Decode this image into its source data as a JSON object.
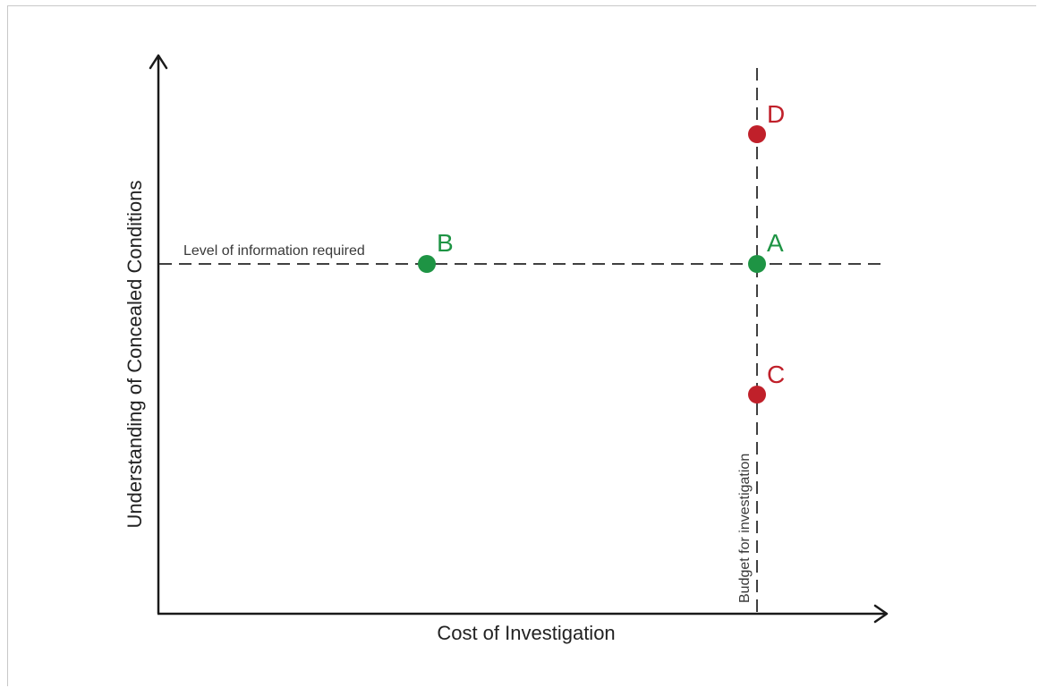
{
  "diagram": {
    "x_axis_label": "Cost of Investigation",
    "y_axis_label": "Understanding of Concealed Conditions",
    "horizontal_reference_label": "Level of information required",
    "vertical_reference_label": "Budget for investigation",
    "colors": {
      "green": "#1e9444",
      "red": "#c0202a",
      "axis": "#1a1a1a"
    },
    "points": [
      {
        "label": "A",
        "color": "green",
        "meaning": "at budget, meets required level"
      },
      {
        "label": "B",
        "color": "green",
        "meaning": "under budget, meets required level"
      },
      {
        "label": "C",
        "color": "red",
        "meaning": "at budget, below required level"
      },
      {
        "label": "D",
        "color": "red",
        "meaning": "at budget, above required level"
      }
    ]
  }
}
